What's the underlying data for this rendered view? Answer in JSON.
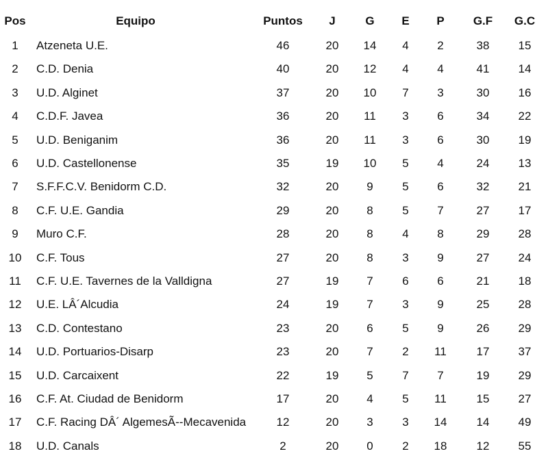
{
  "headers": [
    "Pos",
    "Equipo",
    "Puntos",
    "J",
    "G",
    "E",
    "P",
    "G.F",
    "G.C"
  ],
  "rows": [
    [
      "1",
      "Atzeneta U.E.",
      "46",
      "20",
      "14",
      "4",
      "2",
      "38",
      "15"
    ],
    [
      "2",
      "C.D. Denia",
      "40",
      "20",
      "12",
      "4",
      "4",
      "41",
      "14"
    ],
    [
      "3",
      "U.D. Alginet",
      "37",
      "20",
      "10",
      "7",
      "3",
      "30",
      "16"
    ],
    [
      "4",
      "C.D.F. Javea",
      "36",
      "20",
      "11",
      "3",
      "6",
      "34",
      "22"
    ],
    [
      "5",
      "U.D. Beniganim",
      "36",
      "20",
      "11",
      "3",
      "6",
      "30",
      "19"
    ],
    [
      "6",
      "U.D. Castellonense",
      "35",
      "19",
      "10",
      "5",
      "4",
      "24",
      "13"
    ],
    [
      "7",
      "S.F.F.C.V. Benidorm C.D.",
      "32",
      "20",
      "9",
      "5",
      "6",
      "32",
      "21"
    ],
    [
      "8",
      "C.F. U.E. Gandia",
      "29",
      "20",
      "8",
      "5",
      "7",
      "27",
      "17"
    ],
    [
      "9",
      "Muro C.F.",
      "28",
      "20",
      "8",
      "4",
      "8",
      "29",
      "28"
    ],
    [
      "10",
      "C.F. Tous",
      "27",
      "20",
      "8",
      "3",
      "9",
      "27",
      "24"
    ],
    [
      "11",
      "C.F. U.E. Tavernes de la Valldigna",
      "27",
      "19",
      "7",
      "6",
      "6",
      "21",
      "18"
    ],
    [
      "12",
      "U.E. LÂ´Alcudia",
      "24",
      "19",
      "7",
      "3",
      "9",
      "25",
      "28"
    ],
    [
      "13",
      "C.D. Contestano",
      "23",
      "20",
      "6",
      "5",
      "9",
      "26",
      "29"
    ],
    [
      "14",
      "U.D. Portuarios-Disarp",
      "23",
      "20",
      "7",
      "2",
      "11",
      "17",
      "37"
    ],
    [
      "15",
      "U.D. Carcaixent",
      "22",
      "19",
      "5",
      "7",
      "7",
      "19",
      "29"
    ],
    [
      "16",
      "C.F. At. Ciudad de Benidorm",
      "17",
      "20",
      "4",
      "5",
      "11",
      "15",
      "27"
    ],
    [
      "17",
      "C.F. Racing DÂ´ AlgemesÃ--Mecavenida",
      "12",
      "20",
      "3",
      "3",
      "14",
      "14",
      "49"
    ],
    [
      "18",
      "U.D. Canals",
      "2",
      "20",
      "0",
      "2",
      "18",
      "12",
      "55"
    ]
  ]
}
